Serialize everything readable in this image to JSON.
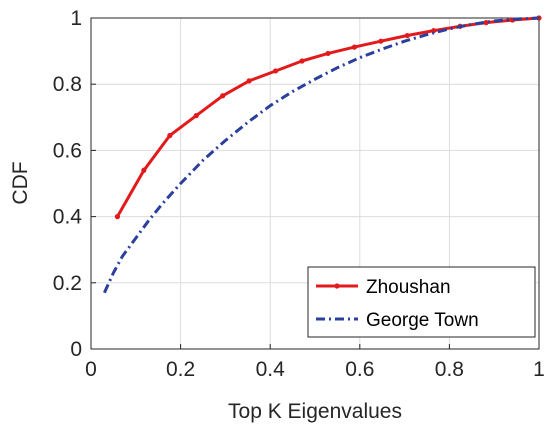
{
  "chart_data": {
    "type": "line",
    "title": "",
    "xlabel": "Top K Eigenvalues",
    "ylabel": "CDF",
    "xlim": [
      0,
      1
    ],
    "ylim": [
      0,
      1
    ],
    "xticks": [
      "0",
      "0.2",
      "0.4",
      "0.6",
      "0.8",
      "1"
    ],
    "yticks": [
      "0",
      "0.2",
      "0.4",
      "0.6",
      "0.8",
      "1"
    ],
    "grid": true,
    "legend_position": "bottom-right",
    "series": [
      {
        "name": "Zhoushan",
        "color": "#e31a1c",
        "style": "solid-with-dots",
        "x": [
          0.059,
          0.118,
          0.176,
          0.235,
          0.294,
          0.353,
          0.412,
          0.471,
          0.529,
          0.588,
          0.647,
          0.706,
          0.765,
          0.824,
          0.882,
          0.941,
          1.0
        ],
        "y": [
          0.4,
          0.54,
          0.645,
          0.705,
          0.765,
          0.81,
          0.84,
          0.87,
          0.893,
          0.912,
          0.93,
          0.947,
          0.962,
          0.975,
          0.986,
          0.994,
          1.0
        ]
      },
      {
        "name": "George Town",
        "color": "#2b3f9e",
        "style": "dash-dot",
        "x": [
          0.03,
          0.05,
          0.07,
          0.1,
          0.13,
          0.16,
          0.2,
          0.25,
          0.3,
          0.35,
          0.4,
          0.45,
          0.5,
          0.55,
          0.6,
          0.65,
          0.7,
          0.75,
          0.8,
          0.85,
          0.9,
          0.95,
          1.0
        ],
        "y": [
          0.17,
          0.23,
          0.28,
          0.335,
          0.39,
          0.44,
          0.5,
          0.57,
          0.63,
          0.685,
          0.735,
          0.778,
          0.815,
          0.85,
          0.88,
          0.906,
          0.93,
          0.95,
          0.967,
          0.981,
          0.991,
          0.997,
          1.0
        ]
      }
    ]
  }
}
